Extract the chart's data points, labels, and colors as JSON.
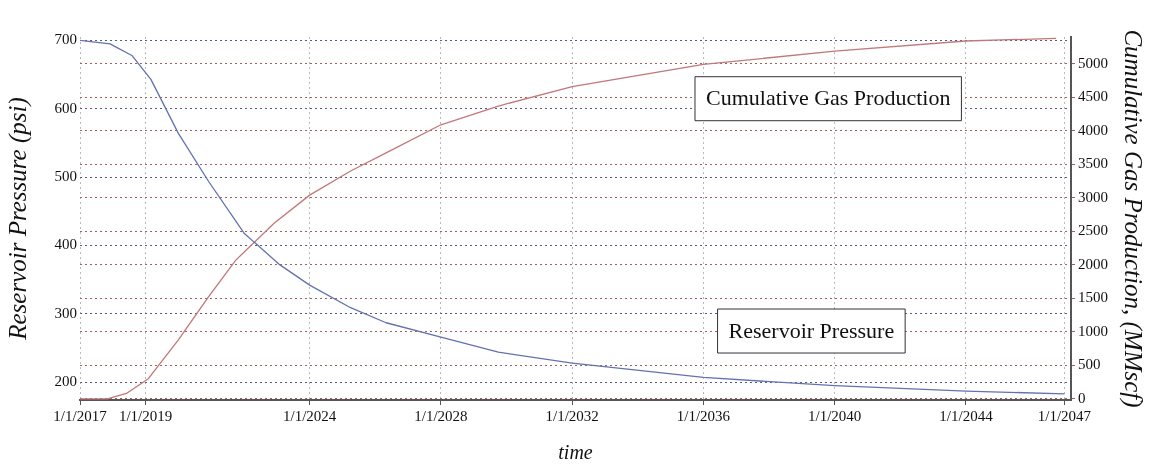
{
  "chart_data": {
    "type": "line",
    "xlabel": "time",
    "ylabel": "Reservoir Pressure (psi)",
    "y2label": "Cumulative Gas Production, (MMscf)",
    "xlim": [
      "2017-01-01",
      "2047-03-15"
    ],
    "xticks": [
      {
        "value": "2017-01-01",
        "label": "1/1/2017"
      },
      {
        "value": "2019-01-01",
        "label": "1/1/2019"
      },
      {
        "value": "2024-01-01",
        "label": "1/1/2024"
      },
      {
        "value": "2028-01-01",
        "label": "1/1/2028"
      },
      {
        "value": "2032-01-01",
        "label": "1/1/2032"
      },
      {
        "value": "2036-01-01",
        "label": "1/1/2036"
      },
      {
        "value": "2040-01-01",
        "label": "1/1/2040"
      },
      {
        "value": "2044-01-01",
        "label": "1/1/2044"
      },
      {
        "value": "2047-01-01",
        "label": "1/1/2047"
      }
    ],
    "ylim": [
      174,
      705
    ],
    "yticks": [
      200,
      300,
      400,
      500,
      600,
      700
    ],
    "y2lim": [
      -18,
      5400
    ],
    "y2ticks": [
      0,
      500,
      1000,
      1500,
      2000,
      2500,
      3000,
      3500,
      4000,
      4500,
      5000
    ],
    "grid": true,
    "marker": "none",
    "line_style": "solid",
    "legend": false,
    "series": [
      {
        "name": "Reservoir Pressure",
        "color": "#6272ad",
        "axis": "y",
        "x": [
          "2017-01",
          "2017-12",
          "2018-08",
          "2019-03",
          "2020-01",
          "2020-12",
          "2022-01",
          "2023-02",
          "2024-01",
          "2025-04",
          "2026-05",
          "2028-01",
          "2029-10",
          "2032-01",
          "2036-01",
          "2040-01",
          "2044-01",
          "2047-01"
        ],
        "values": [
          700,
          695,
          678,
          643,
          564,
          494,
          418,
          372,
          342,
          309,
          287,
          266,
          244,
          228,
          207,
          195,
          187,
          183
        ]
      },
      {
        "name": "Cumulative Gas Production",
        "color": "#c07878",
        "axis": "y2",
        "x": [
          "2017-01",
          "2017-11",
          "2018-06",
          "2019-02",
          "2020-01",
          "2020-12",
          "2021-10",
          "2022-12",
          "2024-01",
          "2025-04",
          "2026-05",
          "2028-01",
          "2029-10",
          "2032-01",
          "2036-01",
          "2040-01",
          "2044-01",
          "2046-10"
        ],
        "values": [
          0,
          0,
          80,
          300,
          880,
          1520,
          2070,
          2620,
          3040,
          3400,
          3670,
          4090,
          4370,
          4660,
          4990,
          5190,
          5340,
          5380
        ]
      }
    ]
  }
}
